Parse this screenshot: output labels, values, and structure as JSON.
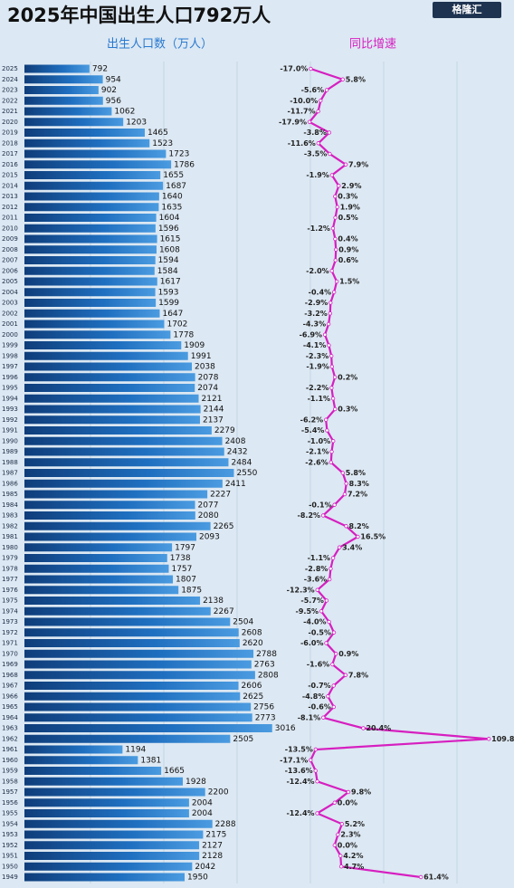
{
  "logo": "格隆汇",
  "chart_data": [
    {
      "type": "bar",
      "title": "2025年中国出生人口792万人",
      "axis_label": "出生人口数（万人）",
      "color": "#1f6fc0",
      "categories": [
        "2025",
        "2024",
        "2023",
        "2022",
        "2021",
        "2020",
        "2019",
        "2018",
        "2017",
        "2016",
        "2015",
        "2014",
        "2013",
        "2012",
        "2011",
        "2010",
        "2009",
        "2008",
        "2007",
        "2006",
        "2005",
        "2004",
        "2003",
        "2002",
        "2001",
        "2000",
        "1999",
        "1998",
        "1997",
        "1996",
        "1995",
        "1994",
        "1993",
        "1992",
        "1991",
        "1990",
        "1989",
        "1988",
        "1987",
        "1986",
        "1985",
        "1984",
        "1983",
        "1982",
        "1981",
        "1980",
        "1979",
        "1978",
        "1977",
        "1976",
        "1975",
        "1974",
        "1973",
        "1972",
        "1971",
        "1970",
        "1969",
        "1968",
        "1967",
        "1966",
        "1965",
        "1964",
        "1963",
        "1962",
        "1961",
        "1960",
        "1959",
        "1958",
        "1957",
        "1956",
        "1955",
        "1954",
        "1953",
        "1952",
        "1951",
        "1950",
        "1949"
      ],
      "values": [
        792,
        954,
        902,
        956,
        1062,
        1203,
        1465,
        1523,
        1723,
        1786,
        1655,
        1687,
        1640,
        1635,
        1604,
        1596,
        1615,
        1608,
        1594,
        1584,
        1617,
        1593,
        1599,
        1647,
        1702,
        1778,
        1909,
        1991,
        2038,
        2078,
        2074,
        2121,
        2144,
        2137,
        2279,
        2408,
        2432,
        2484,
        2550,
        2411,
        2227,
        2077,
        2080,
        2265,
        2093,
        1797,
        1738,
        1757,
        1807,
        1875,
        2138,
        2267,
        2504,
        2608,
        2620,
        2788,
        2763,
        2808,
        2606,
        2625,
        2756,
        2773,
        3016,
        2505,
        1194,
        1381,
        1665,
        1928,
        2200,
        2004,
        2004,
        2288,
        2175,
        2127,
        2128,
        2042,
        1950
      ],
      "xlim": [
        0,
        3250
      ]
    },
    {
      "type": "line",
      "title": "同比增速",
      "color": "#d61fc0",
      "values": [
        -17.0,
        5.8,
        -5.6,
        -10.0,
        -11.7,
        -17.9,
        -3.8,
        -11.6,
        -3.5,
        7.9,
        -1.9,
        2.9,
        0.3,
        1.9,
        0.5,
        -1.2,
        0.4,
        0.9,
        0.6,
        -2.0,
        1.5,
        -0.4,
        -2.9,
        -3.2,
        -4.3,
        -6.9,
        -4.1,
        -2.3,
        -1.9,
        0.2,
        -2.2,
        -1.1,
        0.3,
        -6.2,
        -5.4,
        -1.0,
        -2.1,
        -2.6,
        5.8,
        8.3,
        7.2,
        -0.1,
        -8.2,
        8.2,
        16.5,
        3.4,
        -1.1,
        -2.8,
        -3.6,
        -12.3,
        -5.7,
        -9.5,
        -4.0,
        -0.5,
        -6.0,
        0.9,
        -1.6,
        7.8,
        -0.7,
        -4.8,
        -0.6,
        -8.1,
        20.4,
        109.8,
        -13.5,
        -17.1,
        -13.6,
        -12.4,
        9.8,
        0.0,
        -12.4,
        5.2,
        2.3,
        0.0,
        4.2,
        4.7,
        61.4
      ],
      "value_labels": [
        "-17.0%",
        "5.8%",
        "-5.6%",
        "-10.0%",
        "-11.7%",
        "-17.9%",
        "-3.8%",
        "-11.6%",
        "-3.5%",
        "7.9%",
        "-1.9%",
        "2.9%",
        "0.3%",
        "1.9%",
        "0.5%",
        "-1.2%",
        "0.4%",
        "0.9%",
        "0.6%",
        "-2.0%",
        "1.5%",
        "-0.4%",
        "-2.9%",
        "-3.2%",
        "-4.3%",
        "-6.9%",
        "-4.1%",
        "-2.3%",
        "-1.9%",
        "0.2%",
        "-2.2%",
        "-1.1%",
        "0.3%",
        "-6.2%",
        "-5.4%",
        "-1.0%",
        "-2.1%",
        "-2.6%",
        "5.8%",
        "8.3%",
        "7.2%",
        "-0.1%",
        "-8.2%",
        "8.2%",
        "16.5%",
        "3.4%",
        "-1.1%",
        "-2.8%",
        "-3.6%",
        "-12.3%",
        "-5.7%",
        "-9.5%",
        "-4.0%",
        "-0.5%",
        "-6.0%",
        "0.9%",
        "-1.6%",
        "7.8%",
        "-0.7%",
        "-4.8%",
        "-0.6%",
        "-8.1%",
        "20.4%",
        "109.8%",
        "-13.5%",
        "-17.1%",
        "-13.6%",
        "-12.4%",
        "9.8%",
        "0.0%",
        "-12.4%",
        "5.2%",
        "2.3%",
        "0.0%",
        "4.2%",
        "4.7%",
        "61.4%"
      ],
      "xlim": [
        -25,
        120
      ]
    }
  ]
}
